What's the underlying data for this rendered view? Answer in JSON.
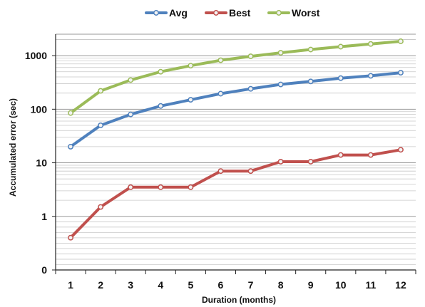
{
  "chart_data": {
    "type": "line",
    "title": "",
    "xlabel": "Duration (months)",
    "ylabel": "Accumulated error (sec)",
    "y_scale": "log",
    "grid": true,
    "legend_position": "top-center",
    "categories": [
      "1",
      "2",
      "3",
      "4",
      "5",
      "6",
      "7",
      "8",
      "9",
      "10",
      "11",
      "12"
    ],
    "y_tick_labels": [
      "0",
      "1",
      "10",
      "100",
      "1000"
    ],
    "series": [
      {
        "name": "Avg",
        "color": "#4f81bd",
        "values": [
          20,
          50,
          80,
          115,
          150,
          195,
          240,
          290,
          330,
          380,
          420,
          480
        ]
      },
      {
        "name": "Best",
        "color": "#c0504d",
        "values": [
          0.4,
          1.5,
          3.5,
          3.5,
          3.5,
          7,
          7,
          10.5,
          10.5,
          14,
          14,
          17.5
        ]
      },
      {
        "name": "Worst",
        "color": "#9bbb59",
        "values": [
          85,
          220,
          350,
          500,
          650,
          820,
          970,
          1130,
          1300,
          1470,
          1650,
          1850
        ]
      }
    ]
  }
}
